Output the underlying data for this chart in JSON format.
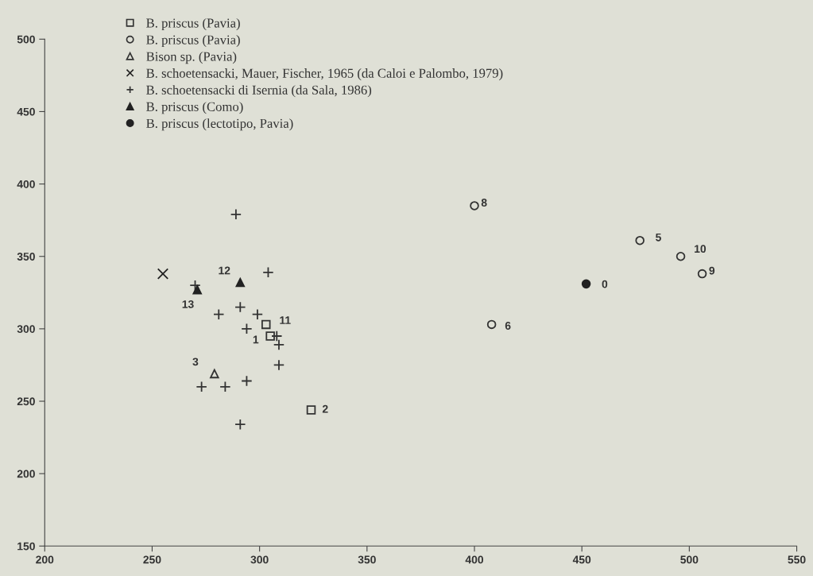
{
  "chart_data": {
    "type": "scatter",
    "xlim": [
      200,
      550
    ],
    "ylim": [
      150,
      500
    ],
    "xticks": [
      200,
      250,
      300,
      350,
      400,
      450,
      500,
      550
    ],
    "yticks": [
      150,
      200,
      250,
      300,
      350,
      400,
      450,
      500
    ],
    "grid": false,
    "legend": "top left",
    "series": [
      {
        "name": "B. priscus (Pavia)",
        "color": "#333333",
        "marker": "square",
        "x": [
          303,
          305,
          324
        ],
        "values": [
          303,
          295,
          244
        ]
      },
      {
        "name": "B. priscus (Pavia)",
        "color": "#333333",
        "marker": "circle",
        "x": [
          477,
          408,
          400,
          506,
          496
        ],
        "values": [
          361,
          303,
          385,
          338,
          350
        ]
      },
      {
        "name": "Bison sp. (Pavia)",
        "color": "#333333",
        "marker": "triangle",
        "x": [
          279
        ],
        "values": [
          269
        ]
      },
      {
        "name": "B. schoetensacki, Mauer, Fischer, 1965 (da Caloi e Palombo, 1979)",
        "color": "#222222",
        "marker": "cross",
        "x": [
          255
        ],
        "values": [
          338
        ]
      },
      {
        "name": "B. schoetensacki di Isernia (da Sala, 1986)",
        "color": "#333333",
        "marker": "plus",
        "x": [
          289,
          304,
          270,
          291,
          281,
          299,
          294,
          308,
          309,
          309,
          294,
          273,
          284,
          291
        ],
        "values": [
          379,
          339,
          330,
          315,
          310,
          310,
          300,
          295,
          289,
          275,
          264,
          260,
          260,
          234
        ]
      },
      {
        "name": "B. priscus (Como)",
        "color": "#222222",
        "marker": "triangle",
        "x": [
          291,
          271
        ],
        "values": [
          332,
          327
        ]
      },
      {
        "name": "B. priscus (lectotipo, Pavia)",
        "color": "#222222",
        "marker": "circle",
        "x": [
          452
        ],
        "values": [
          331
        ]
      }
    ],
    "annotations": [
      {
        "text": "1",
        "x": 305,
        "y": 295
      },
      {
        "text": "2",
        "x": 324,
        "y": 244
      },
      {
        "text": "11",
        "x": 303,
        "y": 303
      },
      {
        "text": "5",
        "x": 477,
        "y": 361
      },
      {
        "text": "6",
        "x": 408,
        "y": 303
      },
      {
        "text": "8",
        "x": 400,
        "y": 385
      },
      {
        "text": "9",
        "x": 506,
        "y": 338
      },
      {
        "text": "10",
        "x": 496,
        "y": 350
      },
      {
        "text": "3",
        "x": 279,
        "y": 269
      },
      {
        "text": "12",
        "x": 291,
        "y": 332
      },
      {
        "text": "13",
        "x": 271,
        "y": 327
      },
      {
        "text": "0",
        "x": 452,
        "y": 331
      }
    ]
  }
}
